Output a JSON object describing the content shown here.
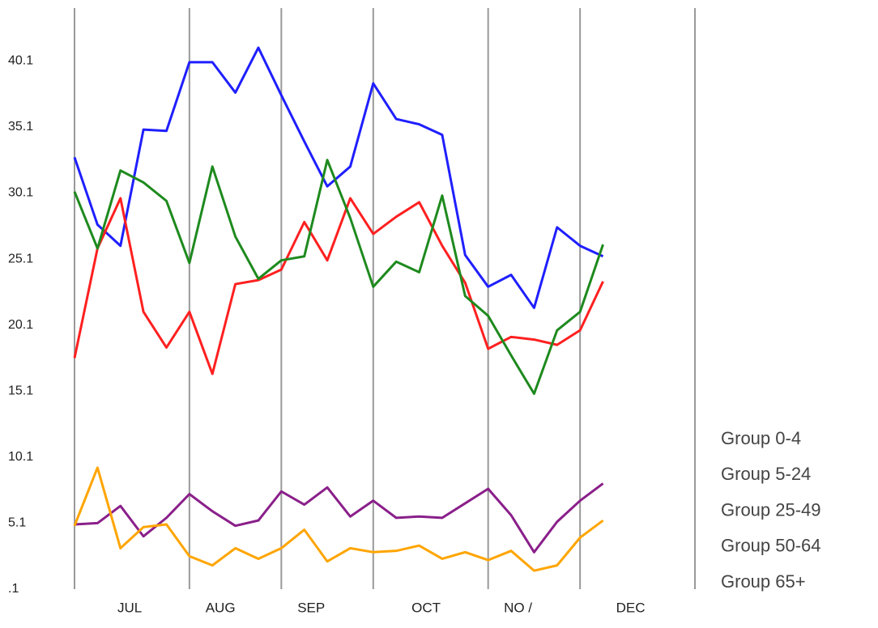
{
  "chart_data": {
    "type": "line",
    "x": [
      0,
      1,
      2,
      3,
      4,
      5,
      6,
      7,
      8,
      9,
      10,
      11,
      12,
      13,
      14,
      15,
      16,
      17,
      18,
      19,
      20,
      21,
      22,
      23
    ],
    "xlim": [
      0,
      27
    ],
    "xgrid": [
      0,
      5,
      9,
      13,
      18,
      22,
      27
    ],
    "xticks": [
      {
        "value": 2.4,
        "label": "JUL"
      },
      {
        "value": 6.35,
        "label": "AUG"
      },
      {
        "value": 10.3,
        "label": "SEP"
      },
      {
        "value": 15.3,
        "label": "OCT"
      },
      {
        "value": 19.3,
        "label": "NO /"
      },
      {
        "value": 24.2,
        "label": "DEC"
      }
    ],
    "ylim": [
      0.1,
      44.1
    ],
    "yticks": [
      {
        "value": 0.1,
        "label": ".1"
      },
      5.1,
      10.1,
      15.1,
      20.1,
      25.1,
      30.1,
      35.1,
      40.1
    ],
    "grid": "x",
    "series": [
      {
        "name": "Group 0-4",
        "color": "#1f1fff",
        "values": [
          32.8,
          27.7,
          26.1,
          34.9,
          34.8,
          40.0,
          40.0,
          37.7,
          41.1,
          37.5,
          34.0,
          30.6,
          32.1,
          38.4,
          35.7,
          35.3,
          34.5,
          25.4,
          23.0,
          23.9,
          21.4,
          27.5,
          26.1,
          25.3
        ]
      },
      {
        "name": "Group 5-24",
        "color": "#ff2020",
        "values": [
          17.6,
          25.9,
          29.7,
          21.1,
          18.4,
          21.1,
          16.4,
          23.2,
          23.5,
          24.3,
          27.9,
          25.0,
          29.7,
          27.0,
          28.3,
          29.4,
          26.1,
          23.3,
          18.3,
          19.2,
          19.0,
          18.6,
          19.7,
          23.4
        ]
      },
      {
        "name": "Group 25-49",
        "color": "#1e8a1e",
        "values": [
          30.2,
          25.9,
          31.8,
          30.9,
          29.5,
          24.8,
          32.1,
          26.8,
          23.6,
          25.0,
          25.3,
          32.6,
          28.2,
          23.0,
          24.9,
          24.1,
          29.9,
          22.3,
          20.8,
          17.8,
          14.9,
          19.7,
          21.1,
          26.2
        ]
      },
      {
        "name": "Group 50-64",
        "color": "#8a1f8a",
        "values": [
          5.0,
          5.1,
          6.4,
          4.1,
          5.5,
          7.3,
          6.0,
          4.9,
          5.3,
          7.5,
          6.5,
          7.8,
          5.6,
          6.8,
          5.5,
          5.6,
          5.5,
          6.6,
          7.7,
          5.7,
          2.9,
          5.2,
          6.8,
          8.1
        ]
      },
      {
        "name": "Group 65+",
        "color": "#ffa500",
        "values": [
          4.9,
          9.3,
          3.2,
          4.8,
          5.0,
          2.6,
          1.9,
          3.2,
          2.4,
          3.2,
          4.6,
          2.2,
          3.2,
          2.9,
          3.0,
          3.4,
          2.4,
          2.9,
          2.3,
          3.0,
          1.5,
          1.9,
          4.0,
          5.3
        ]
      }
    ]
  }
}
